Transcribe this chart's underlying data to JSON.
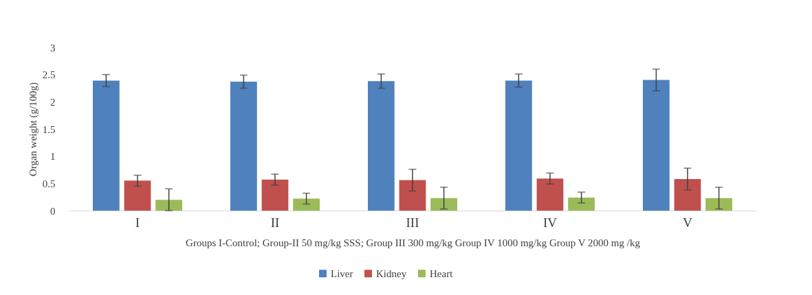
{
  "chart_data": {
    "type": "bar",
    "xlabel": "Groups I-Control; Group-II 50 mg/kg SSS; Group III 300 mg/kg  Group IV 1000 mg/kg  Group V 2000 mg /kg",
    "ylabel": "Organ weight  (g/100g)",
    "categories": [
      "I",
      "II",
      "III",
      "IV",
      "V"
    ],
    "series": [
      {
        "name": "Liver",
        "color": "#4f81bd",
        "values": [
          2.39,
          2.37,
          2.38,
          2.39,
          2.4
        ],
        "errors": [
          0.11,
          0.12,
          0.13,
          0.12,
          0.2
        ]
      },
      {
        "name": "Kidney",
        "color": "#c0504d",
        "values": [
          0.55,
          0.57,
          0.56,
          0.59,
          0.58
        ],
        "errors": [
          0.1,
          0.1,
          0.2,
          0.1,
          0.2
        ]
      },
      {
        "name": "Heart",
        "color": "#9bbb59",
        "values": [
          0.2,
          0.22,
          0.23,
          0.24,
          0.23
        ],
        "errors": [
          0.2,
          0.1,
          0.2,
          0.1,
          0.2
        ]
      }
    ],
    "ylim": [
      0,
      3
    ],
    "yticks": [
      0,
      0.5,
      1,
      1.5,
      2,
      2.5,
      3
    ],
    "grid": false,
    "legend": "bottom"
  }
}
